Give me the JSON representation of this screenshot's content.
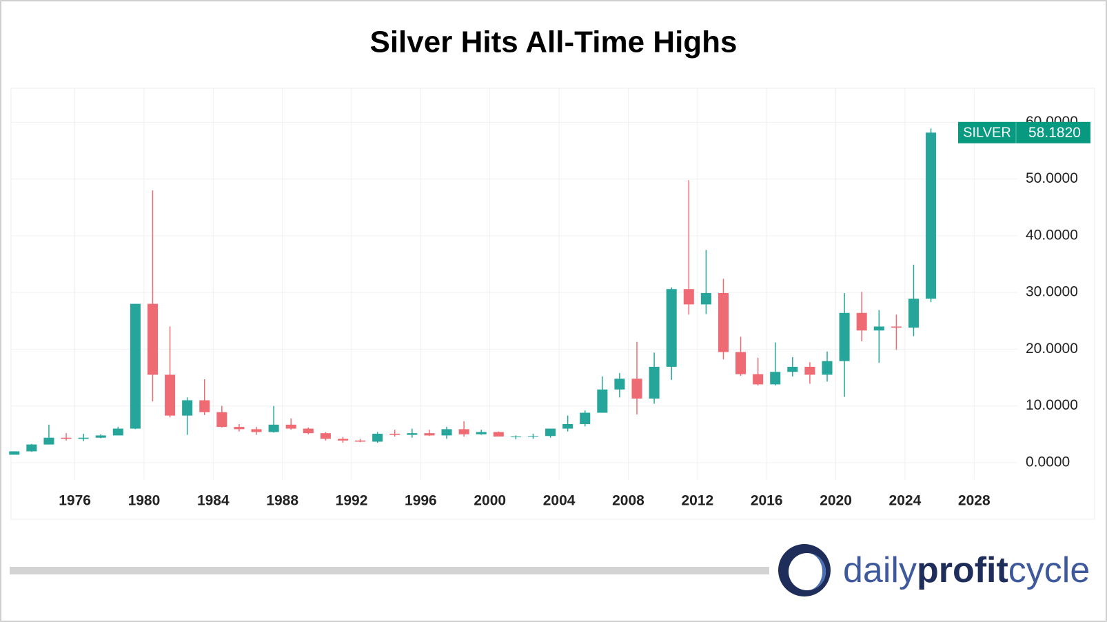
{
  "chart_data": {
    "type": "candlestick",
    "title": "Silver Hits All-Time Highs",
    "x": [
      1972,
      1973,
      1974,
      1975,
      1976,
      1977,
      1978,
      1979,
      1980,
      1981,
      1982,
      1983,
      1984,
      1985,
      1986,
      1987,
      1988,
      1989,
      1990,
      1991,
      1992,
      1993,
      1994,
      1995,
      1996,
      1997,
      1998,
      1999,
      2000,
      2001,
      2002,
      2003,
      2004,
      2005,
      2006,
      2007,
      2008,
      2009,
      2010,
      2011,
      2012,
      2013,
      2014,
      2015,
      2016,
      2017,
      2018,
      2019,
      2020,
      2021,
      2022,
      2023,
      2024,
      2025
    ],
    "open": [
      1.4,
      2.0,
      3.2,
      4.4,
      4.2,
      4.4,
      4.8,
      6.0,
      28.0,
      15.5,
      8.3,
      11.0,
      8.9,
      6.3,
      5.9,
      5.4,
      6.7,
      6.0,
      5.2,
      4.2,
      3.9,
      3.7,
      5.1,
      4.9,
      5.2,
      4.8,
      5.9,
      5.0,
      5.4,
      4.6,
      4.6,
      4.7,
      6.0,
      6.8,
      8.8,
      12.9,
      14.8,
      11.3,
      16.9,
      30.6,
      27.9,
      29.9,
      19.5,
      15.6,
      13.8,
      16.0,
      16.9,
      15.5,
      17.9,
      26.4,
      23.3,
      24.0,
      23.8,
      28.9
    ],
    "high": [
      2.0,
      3.3,
      6.7,
      5.2,
      5.1,
      5.0,
      6.3,
      28.0,
      48.0,
      24.0,
      11.5,
      14.7,
      10.0,
      6.8,
      6.3,
      10.0,
      7.8,
      6.2,
      5.4,
      4.5,
      4.2,
      5.4,
      5.8,
      6.0,
      5.8,
      6.3,
      7.3,
      5.8,
      5.5,
      4.8,
      5.1,
      6.0,
      8.3,
      9.2,
      15.2,
      15.8,
      21.3,
      19.4,
      30.9,
      49.8,
      37.5,
      32.4,
      22.2,
      18.5,
      21.2,
      18.6,
      17.7,
      19.6,
      29.9,
      30.1,
      26.9,
      26.1,
      34.9,
      58.9
    ],
    "low": [
      1.4,
      1.9,
      3.2,
      3.9,
      3.8,
      4.3,
      4.8,
      5.9,
      10.8,
      8.0,
      4.9,
      8.4,
      6.2,
      5.5,
      4.9,
      5.3,
      5.8,
      5.0,
      3.9,
      3.5,
      3.6,
      3.5,
      4.6,
      4.4,
      4.7,
      4.2,
      4.6,
      4.9,
      4.6,
      4.1,
      4.2,
      4.4,
      5.5,
      6.4,
      8.8,
      11.5,
      8.5,
      10.4,
      14.6,
      26.1,
      26.2,
      18.2,
      15.3,
      13.6,
      13.6,
      15.2,
      13.9,
      14.3,
      11.6,
      21.4,
      17.6,
      19.9,
      22.3,
      28.3
    ],
    "close": [
      2.0,
      3.2,
      4.4,
      4.2,
      4.4,
      4.8,
      6.0,
      28.0,
      15.5,
      8.3,
      11.0,
      8.9,
      6.3,
      5.9,
      5.4,
      6.7,
      6.0,
      5.2,
      4.2,
      3.9,
      3.7,
      5.1,
      4.9,
      5.2,
      4.8,
      5.9,
      5.0,
      5.4,
      4.6,
      4.6,
      4.7,
      6.0,
      6.8,
      8.8,
      12.9,
      14.8,
      11.3,
      16.9,
      30.6,
      27.9,
      29.9,
      19.5,
      15.6,
      13.8,
      16.0,
      16.9,
      15.5,
      17.9,
      26.4,
      23.3,
      24.0,
      23.8,
      28.9,
      58.182
    ],
    "up_color": "#26a69a",
    "down_color": "#ef6b73",
    "xlim": [
      1972.31,
      2030.5
    ],
    "xticks": [
      1976,
      1980,
      1984,
      1988,
      1992,
      1996,
      2000,
      2004,
      2008,
      2012,
      2016,
      2020,
      2024,
      2028
    ],
    "ylim": [
      -3,
      66
    ],
    "yticks": [
      {
        "value": 0,
        "label": "0.0000"
      },
      {
        "value": 10,
        "label": "10.0000"
      },
      {
        "value": 20,
        "label": "20.0000"
      },
      {
        "value": 30,
        "label": "30.0000"
      },
      {
        "value": 40,
        "label": "40.0000"
      },
      {
        "value": 50,
        "label": "50.0000"
      },
      {
        "value": 60,
        "label": "60.0000"
      }
    ],
    "grid": true,
    "last_name": "SILVER",
    "last_value": 58.182,
    "last_value_label": "58.1820",
    "last_color": "#089981"
  },
  "logo": [
    "daily",
    "profit",
    "cycle"
  ]
}
